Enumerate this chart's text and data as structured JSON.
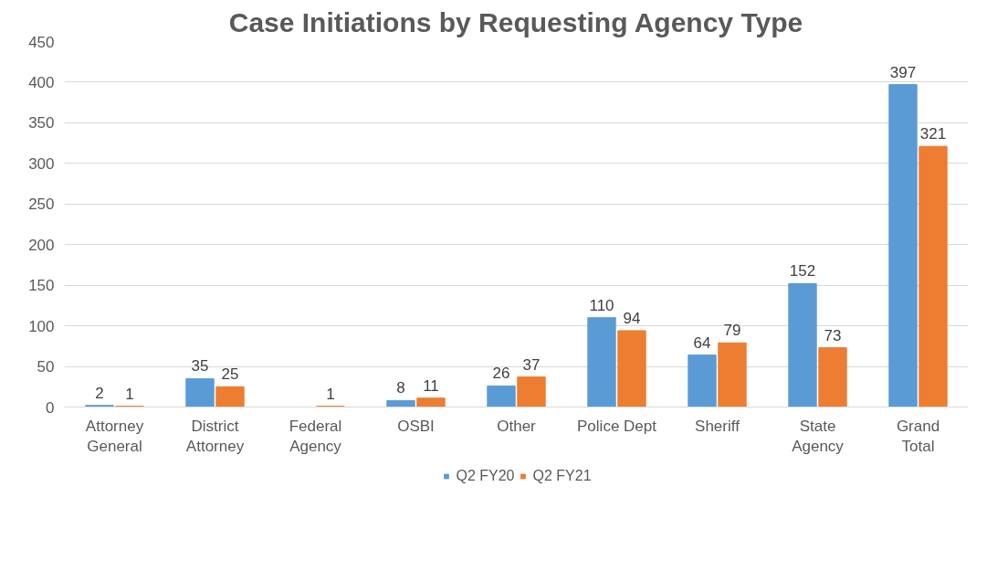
{
  "chart_data": {
    "type": "bar",
    "title": "Case Initiations by Requesting Agency Type",
    "categories": [
      "Attorney\nGeneral",
      "District\nAttorney",
      "Federal\nAgency",
      "OSBI",
      "Other",
      "Police Dept",
      "Sheriff",
      "State\nAgency",
      "Grand\nTotal"
    ],
    "series": [
      {
        "name": "Q2 FY20",
        "color": "#5b9bd5",
        "values": [
          2,
          35,
          null,
          8,
          26,
          110,
          64,
          152,
          397
        ]
      },
      {
        "name": "Q2 FY21",
        "color": "#ed7d31",
        "values": [
          1,
          25,
          1,
          11,
          37,
          94,
          79,
          73,
          321
        ]
      }
    ],
    "ylim": [
      0,
      450
    ],
    "yticks": [
      0,
      50,
      100,
      150,
      200,
      250,
      300,
      350,
      400,
      450
    ],
    "grid": "y",
    "legend": "bottom",
    "data_labels": true
  }
}
